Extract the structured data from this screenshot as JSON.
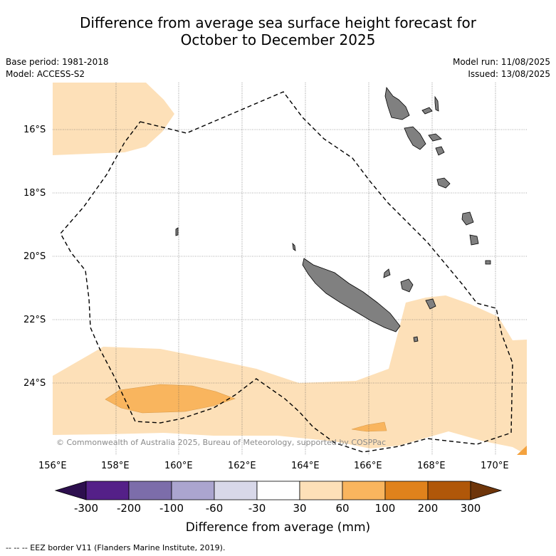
{
  "title_line1": "Difference from average sea surface height forecast for",
  "title_line2": "October to December 2025",
  "base_period": "Base period: 1981-2018",
  "model": "Model: ACCESS-S2",
  "model_run": "Model run: 11/08/2025",
  "issued": "Issued: 13/08/2025",
  "lat_labels": [
    "16°S",
    "18°S",
    "20°S",
    "22°S",
    "24°S"
  ],
  "lon_labels": [
    "156°E",
    "158°E",
    "160°E",
    "162°E",
    "164°E",
    "166°E",
    "168°E",
    "170°E"
  ],
  "copyright": "© Commonwealth of Australia 2025, Bureau of Meteorology, supported by COSPPac",
  "colorbar": {
    "title": "Difference from average (mm)",
    "ticks": [
      "-300",
      "-200",
      "-100",
      "-60",
      "-30",
      "30",
      "60",
      "100",
      "200",
      "300"
    ],
    "colors": [
      "#2d0f4e",
      "#542088",
      "#7c6daa",
      "#aba5cf",
      "#d8d8e9",
      "#ffffff",
      "#fde0b8",
      "#f9b55e",
      "#e0821c",
      "#b05709",
      "#6e350a"
    ]
  },
  "footnote": "--  --  -- EEZ border V11 (Flanders Marine Institute, 2019).",
  "map_colors": {
    "anomaly_30_60": "#fde0b8",
    "anomaly_60_100": "#f9b55e",
    "anomaly_100_200": "#f4a23e",
    "land": "#808080"
  }
}
